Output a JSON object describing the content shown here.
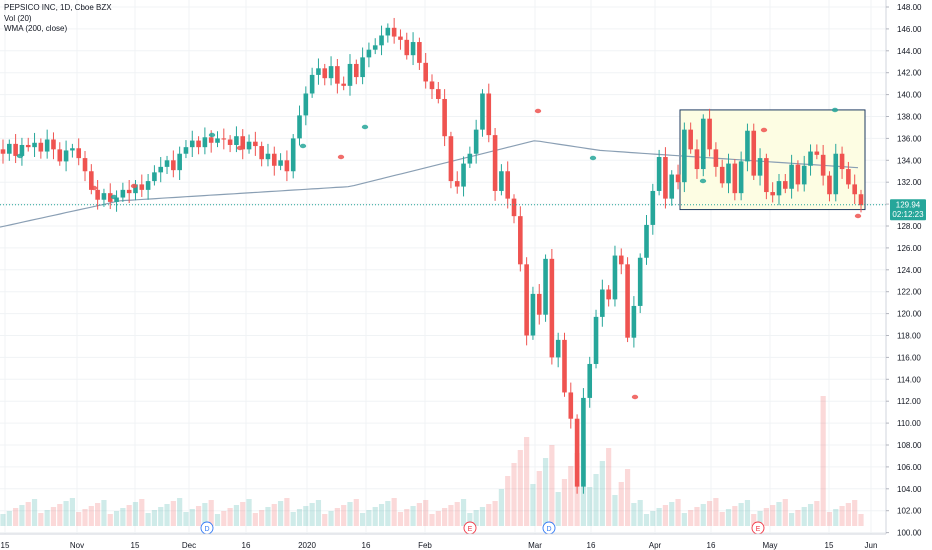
{
  "legend": {
    "symbol_line": "PEPSICO INC, 1D, Cboe BZX",
    "vol_line": "Vol (20)",
    "wma_line": "WMA (200, close)"
  },
  "price_axis": {
    "ticks": [
      "148.00",
      "146.00",
      "144.00",
      "142.00",
      "140.00",
      "138.00",
      "136.00",
      "134.00",
      "132.00",
      "130.00",
      "128.00",
      "126.00",
      "124.00",
      "122.00",
      "120.00",
      "118.00",
      "116.00",
      "114.00",
      "112.00",
      "110.00",
      "108.00",
      "106.00",
      "104.00",
      "102.00",
      "100.00"
    ],
    "last_price": "129.94",
    "countdown": "02:12:23"
  },
  "time_axis": {
    "labels": [
      "15",
      "Nov",
      "15",
      "Dec",
      "16",
      "2020",
      "16",
      "Feb",
      "Mar",
      "16",
      "Apr",
      "16",
      "May",
      "15",
      "Jun"
    ]
  },
  "markers": {
    "dividend": "D",
    "earnings": "E"
  },
  "colors": {
    "up": "#26a69a",
    "down": "#ef5350",
    "wma": "#8a9fb4",
    "box_stroke": "#1e3a5f",
    "box_fill": "#fdfde3",
    "last_price_bg": "#26a69a"
  },
  "chart_data": {
    "type": "candlestick",
    "title": "PEPSICO INC, 1D, Cboe BZX",
    "y_range": [
      99,
      148.5
    ],
    "x_labels": [
      "15",
      "Nov",
      "15",
      "Dec",
      "16",
      "2020",
      "16",
      "Feb",
      "Mar",
      "16",
      "Apr",
      "16",
      "May",
      "15",
      "Jun"
    ],
    "candles_close": [
      134.6,
      135.5,
      134.4,
      135.4,
      135.2,
      135.6,
      134.8,
      135.9,
      135.0,
      133.9,
      134.9,
      135.1,
      134.2,
      133.0,
      131.3,
      130.4,
      131.0,
      130.2,
      130.6,
      131.3,
      131.0,
      131.8,
      131.3,
      132.1,
      132.9,
      133.4,
      134.0,
      133.1,
      134.6,
      135.2,
      135.8,
      135.2,
      136.1,
      135.6,
      136.0,
      135.9,
      135.4,
      136.2,
      135.0,
      135.7,
      135.3,
      134.1,
      134.6,
      133.5,
      134.0,
      133.0,
      136.0,
      138.1,
      140.1,
      141.8,
      142.4,
      141.5,
      142.6,
      141.0,
      140.8,
      142.8,
      141.6,
      143.4,
      144.1,
      144.5,
      145.4,
      146.1,
      145.3,
      145.0,
      143.6,
      144.8,
      142.9,
      141.2,
      140.5,
      139.6,
      136.2,
      132.1,
      131.6,
      133.7,
      134.6,
      136.8,
      140.1,
      136.3,
      131.2,
      133.0,
      130.5,
      128.9,
      124.5,
      118.0,
      121.8,
      119.9,
      125.0,
      116.0,
      117.6,
      112.8,
      110.4,
      104.2,
      112.3,
      115.4,
      119.7,
      122.2,
      121.3,
      125.3,
      124.5,
      117.8,
      120.7,
      125.1,
      128.1,
      131.2,
      134.3,
      130.5,
      132.7,
      132.0,
      136.8,
      135.0,
      133.2,
      137.8,
      135.0,
      133.4,
      131.9,
      133.7,
      131.0,
      133.9,
      136.7,
      132.6,
      134.2,
      131.1,
      130.8,
      132.1,
      131.4,
      133.6,
      131.8,
      133.5,
      134.8,
      134.5,
      132.6,
      130.9,
      134.6,
      133.2,
      131.8,
      130.9,
      129.9
    ],
    "wma_200": {
      "start": 127.9,
      "mid": 131.6,
      "peak": 135.8,
      "end": 133.3
    },
    "annotation_box": {
      "price_top": 138.6,
      "price_bottom": 129.5
    }
  }
}
